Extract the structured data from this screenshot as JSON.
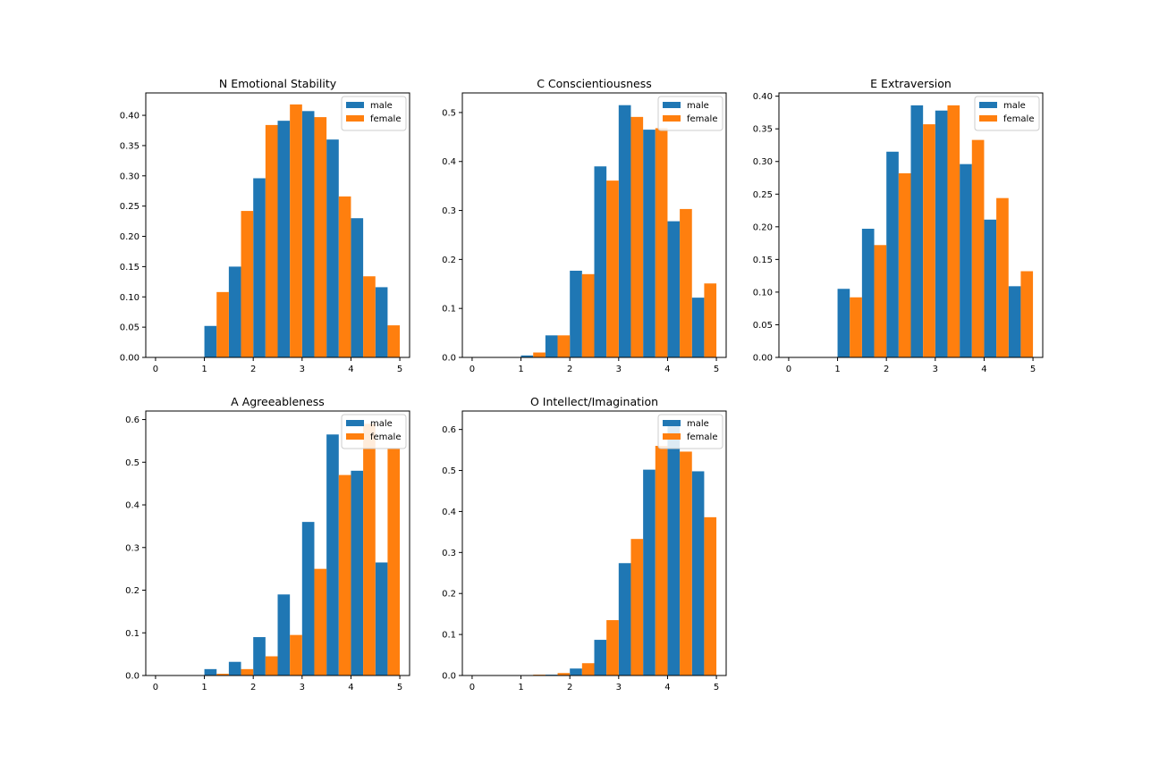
{
  "colors": {
    "male": "#1f77b4",
    "female": "#ff7f0e",
    "axis": "#000000",
    "legend_border": "#cccccc"
  },
  "chart_data": [
    {
      "type": "bar",
      "title": "N Emotional Stability",
      "xlabel": "",
      "ylabel": "",
      "xlim": [
        -0.2,
        5.2
      ],
      "ylim": [
        0,
        0.437
      ],
      "xticks": [
        "0",
        "1",
        "2",
        "3",
        "4",
        "5"
      ],
      "yticks": [
        "0.00",
        "0.05",
        "0.10",
        "0.15",
        "0.20",
        "0.25",
        "0.30",
        "0.35",
        "0.40"
      ],
      "grid": false,
      "legend": "top-right",
      "bins": [
        0.0,
        0.5,
        1.0,
        1.5,
        2.0,
        2.5,
        3.0,
        3.5,
        4.0,
        4.5
      ],
      "bin_width": 0.5,
      "series": [
        {
          "name": "male",
          "values": [
            0,
            0,
            0.052,
            0.15,
            0.296,
            0.391,
            0.407,
            0.36,
            0.23,
            0.116
          ]
        },
        {
          "name": "female",
          "values": [
            0,
            0,
            0.108,
            0.242,
            0.384,
            0.418,
            0.397,
            0.266,
            0.134,
            0.053
          ]
        }
      ]
    },
    {
      "type": "bar",
      "title": "C Conscientiousness",
      "xlabel": "",
      "ylabel": "",
      "xlim": [
        -0.2,
        5.2
      ],
      "ylim": [
        0,
        0.54
      ],
      "xticks": [
        "0",
        "1",
        "2",
        "3",
        "4",
        "5"
      ],
      "yticks": [
        "0.0",
        "0.1",
        "0.2",
        "0.3",
        "0.4",
        "0.5"
      ],
      "grid": false,
      "legend": "top-right",
      "bins": [
        0.0,
        0.5,
        1.0,
        1.5,
        2.0,
        2.5,
        3.0,
        3.5,
        4.0,
        4.5
      ],
      "bin_width": 0.5,
      "series": [
        {
          "name": "male",
          "values": [
            0,
            0,
            0.004,
            0.045,
            0.177,
            0.39,
            0.515,
            0.465,
            0.278,
            0.122
          ]
        },
        {
          "name": "female",
          "values": [
            0,
            0,
            0.01,
            0.045,
            0.17,
            0.361,
            0.491,
            0.468,
            0.303,
            0.151
          ]
        }
      ]
    },
    {
      "type": "bar",
      "title": "E Extraversion",
      "xlabel": "",
      "ylabel": "",
      "xlim": [
        -0.2,
        5.2
      ],
      "ylim": [
        0,
        0.405
      ],
      "xticks": [
        "0",
        "1",
        "2",
        "3",
        "4",
        "5"
      ],
      "yticks": [
        "0.00",
        "0.05",
        "0.10",
        "0.15",
        "0.20",
        "0.25",
        "0.30",
        "0.35",
        "0.40"
      ],
      "grid": false,
      "legend": "top-right",
      "bins": [
        0.0,
        0.5,
        1.0,
        1.5,
        2.0,
        2.5,
        3.0,
        3.5,
        4.0,
        4.5
      ],
      "bin_width": 0.5,
      "series": [
        {
          "name": "male",
          "values": [
            0,
            0,
            0.105,
            0.197,
            0.315,
            0.386,
            0.378,
            0.296,
            0.211,
            0.109
          ]
        },
        {
          "name": "female",
          "values": [
            0,
            0,
            0.092,
            0.172,
            0.282,
            0.357,
            0.386,
            0.333,
            0.244,
            0.132
          ]
        }
      ]
    },
    {
      "type": "bar",
      "title": "A Agreeableness",
      "xlabel": "",
      "ylabel": "",
      "xlim": [
        -0.2,
        5.2
      ],
      "ylim": [
        0,
        0.62
      ],
      "xticks": [
        "0",
        "1",
        "2",
        "3",
        "4",
        "5"
      ],
      "yticks": [
        "0.0",
        "0.1",
        "0.2",
        "0.3",
        "0.4",
        "0.5",
        "0.6"
      ],
      "grid": false,
      "legend": "top-right",
      "bins": [
        0.0,
        0.5,
        1.0,
        1.5,
        2.0,
        2.5,
        3.0,
        3.5,
        4.0,
        4.5
      ],
      "bin_width": 0.5,
      "series": [
        {
          "name": "male",
          "values": [
            0,
            0,
            0.015,
            0.032,
            0.09,
            0.19,
            0.36,
            0.565,
            0.48,
            0.265
          ]
        },
        {
          "name": "female",
          "values": [
            0,
            0,
            0.004,
            0.015,
            0.045,
            0.095,
            0.25,
            0.47,
            0.59,
            0.532
          ]
        }
      ]
    },
    {
      "type": "bar",
      "title": "O Intellect/Imagination",
      "xlabel": "",
      "ylabel": "",
      "xlim": [
        -0.2,
        5.2
      ],
      "ylim": [
        0,
        0.645
      ],
      "xticks": [
        "0",
        "1",
        "2",
        "3",
        "4",
        "5"
      ],
      "yticks": [
        "0.0",
        "0.1",
        "0.2",
        "0.3",
        "0.4",
        "0.5",
        "0.6"
      ],
      "grid": false,
      "legend": "top-right",
      "bins": [
        0.0,
        0.5,
        1.0,
        1.5,
        2.0,
        2.5,
        3.0,
        3.5,
        4.0,
        4.5
      ],
      "bin_width": 0.5,
      "series": [
        {
          "name": "male",
          "values": [
            0,
            0,
            0,
            0.002,
            0.017,
            0.087,
            0.274,
            0.502,
            0.615,
            0.498
          ]
        },
        {
          "name": "female",
          "values": [
            0,
            0,
            0.002,
            0.006,
            0.03,
            0.135,
            0.333,
            0.56,
            0.546,
            0.386
          ]
        }
      ]
    }
  ]
}
